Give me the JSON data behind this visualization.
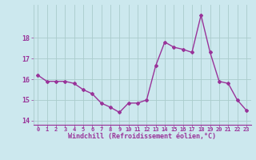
{
  "x": [
    0,
    1,
    2,
    3,
    4,
    5,
    6,
    7,
    8,
    9,
    10,
    11,
    12,
    13,
    14,
    15,
    16,
    17,
    18,
    19,
    20,
    21,
    22,
    23
  ],
  "y": [
    16.2,
    15.9,
    15.9,
    15.9,
    15.8,
    15.5,
    15.3,
    14.85,
    14.65,
    14.4,
    14.85,
    14.85,
    15.0,
    16.65,
    17.8,
    17.55,
    17.45,
    17.3,
    19.1,
    17.3,
    15.9,
    15.8,
    15.0,
    14.5
  ],
  "line_color": "#993399",
  "marker": "D",
  "marker_size": 2,
  "line_width": 1.0,
  "bg_color": "#cce8ee",
  "grid_color": "#aacccc",
  "xlabel": "Windchill (Refroidissement éolien,°C)",
  "xlabel_color": "#993399",
  "tick_color": "#993399",
  "ylim": [
    13.8,
    19.6
  ],
  "xlim": [
    -0.5,
    23.5
  ],
  "xtick_labels": [
    "0",
    "1",
    "2",
    "3",
    "4",
    "5",
    "6",
    "7",
    "8",
    "9",
    "10",
    "11",
    "12",
    "13",
    "14",
    "15",
    "16",
    "17",
    "18",
    "19",
    "20",
    "21",
    "22",
    "23"
  ],
  "ytick_vals": [
    14,
    15,
    16,
    17,
    18
  ]
}
